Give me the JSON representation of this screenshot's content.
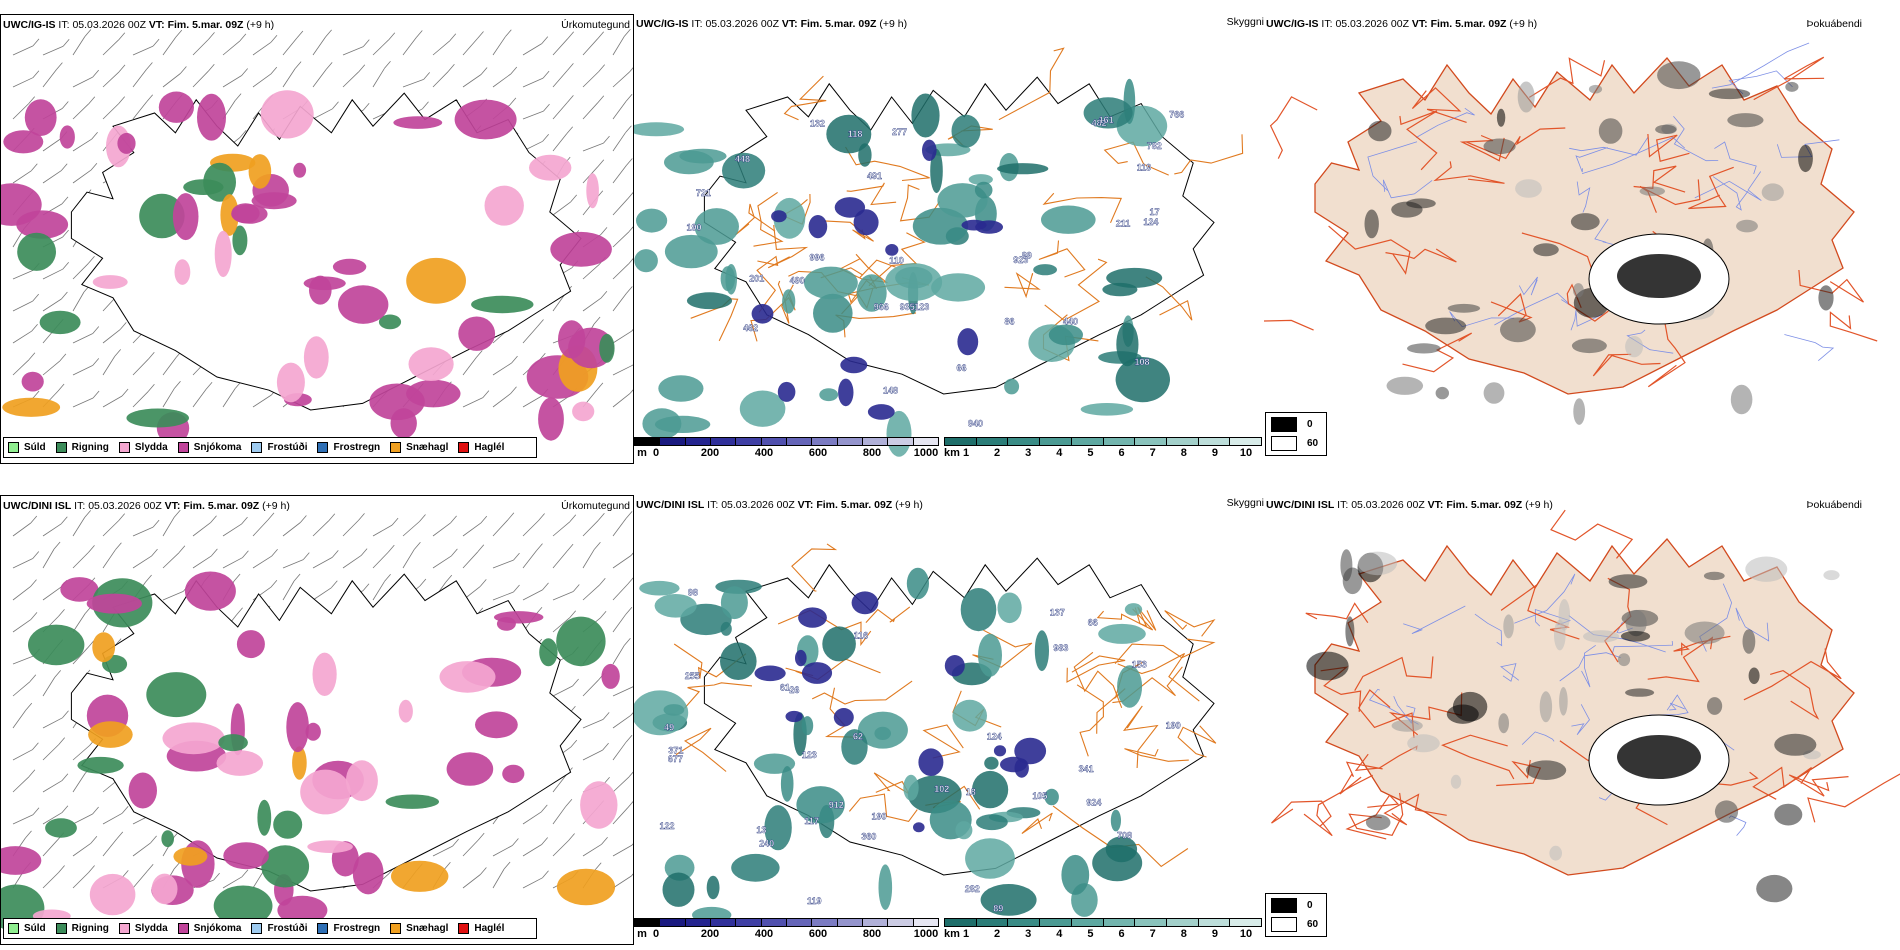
{
  "header": {
    "model_top": "UWC/IG-IS",
    "model_bottom": "UWC/DINI ISL",
    "it_label": "IT:",
    "it_value": "05.03.2026 00Z",
    "vt_label": "VT:",
    "vt_value": "Fim. 5.mar. 09Z",
    "lead": "(+9 h)"
  },
  "panel_titles": {
    "precip": "Úrkomutegund",
    "visibility": "Skyggni",
    "cloud": "Þokuábendi"
  },
  "precip_legend": [
    {
      "label": "Súld",
      "color": "#90ee90"
    },
    {
      "label": "Rigning",
      "color": "#3c8c5a"
    },
    {
      "label": "Slydda",
      "color": "#f4a6d0"
    },
    {
      "label": "Snjókoma",
      "color": "#c0449a"
    },
    {
      "label": "Frostúði",
      "color": "#9ecbf0"
    },
    {
      "label": "Frostregn",
      "color": "#2e6fb5"
    },
    {
      "label": "Snæhagl",
      "color": "#f0a020"
    },
    {
      "label": "Haglél",
      "color": "#e01010"
    }
  ],
  "ceiling_bar": {
    "unit": "m",
    "ticks": [
      "0",
      "200",
      "400",
      "600",
      "800",
      "1000"
    ],
    "colors": [
      "#000000",
      "#1a1a80",
      "#24248f",
      "#30309a",
      "#3f3fa4",
      "#5050ae",
      "#6565b8",
      "#7b7bc2",
      "#9494cc",
      "#b0b0d8",
      "#cccce4",
      "#e6e6f2"
    ]
  },
  "visibility_bar": {
    "unit": "km",
    "ticks": [
      "1",
      "2",
      "3",
      "4",
      "5",
      "6",
      "7",
      "8",
      "9",
      "10"
    ],
    "colors": [
      "#1e6e6a",
      "#2b7d78",
      "#3a8c86",
      "#4b9a93",
      "#5ea8a1",
      "#73b5ae",
      "#8ac3bc",
      "#a3d0ca",
      "#bddeda",
      "#d8ece9"
    ]
  },
  "cloud_legend": {
    "items": [
      {
        "label": "0",
        "color": "#000000"
      },
      {
        "label": "60",
        "color": "#ffffff"
      }
    ]
  },
  "top_vis_labels": [
    "721",
    "482",
    "440",
    "491",
    "123",
    "108",
    "190",
    "119",
    "124",
    "118",
    "277",
    "462",
    "86",
    "966",
    "782",
    "996",
    "448",
    "940",
    "66",
    "766",
    "935",
    "161",
    "490",
    "211",
    "110",
    "132",
    "201",
    "89",
    "148",
    "923",
    "17"
  ],
  "bottom_vis_labels": [
    "360",
    "124",
    "371",
    "66",
    "119",
    "62",
    "26",
    "116",
    "123",
    "122",
    "61",
    "98",
    "190",
    "240",
    "255",
    "341",
    "282",
    "18",
    "102",
    "137",
    "49",
    "153",
    "677",
    "89",
    "117",
    "105",
    "924",
    "190",
    "13",
    "708",
    "912",
    "983"
  ]
}
